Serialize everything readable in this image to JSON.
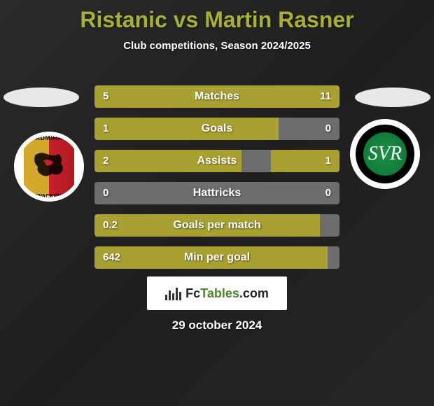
{
  "title": "Ristanic vs Martin Rasner",
  "subtitle": "Club competitions, Season 2024/2025",
  "date": "29 october 2024",
  "logo_text_1": "Fc",
  "logo_text_2": "Tables",
  "logo_text_3": ".com",
  "badge_left": {
    "top": "ADMIRA",
    "bottom": "WACKER"
  },
  "badge_right": {
    "text": "SVR"
  },
  "stats": [
    {
      "label": "Matches",
      "left_val": "5",
      "right_val": "11",
      "left_pct": 31,
      "right_pct": 69
    },
    {
      "label": "Goals",
      "left_val": "1",
      "right_val": "0",
      "left_pct": 75,
      "right_pct": 0
    },
    {
      "label": "Assists",
      "left_val": "2",
      "right_val": "1",
      "left_pct": 60,
      "right_pct": 28
    },
    {
      "label": "Hattricks",
      "left_val": "0",
      "right_val": "0",
      "left_pct": 0,
      "right_pct": 0
    },
    {
      "label": "Goals per match",
      "left_val": "0.2",
      "right_val": "",
      "left_pct": 92,
      "right_pct": 0
    },
    {
      "label": "Min per goal",
      "left_val": "642",
      "right_val": "",
      "left_pct": 95,
      "right_pct": 0
    }
  ],
  "colors": {
    "accent": "#a8a030",
    "bar_bg": "#6d6d6d",
    "title": "#a8b030",
    "text": "#ffffff"
  }
}
